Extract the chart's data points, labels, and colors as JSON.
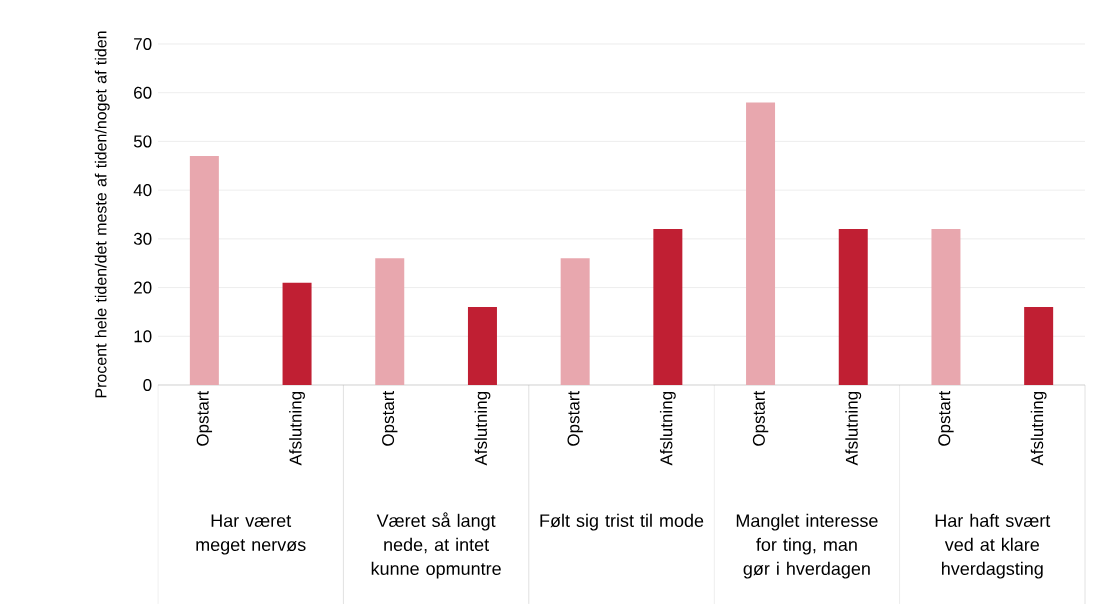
{
  "chart_data": {
    "type": "bar",
    "ylabel": "Procent hele tiden/det meste af tiden/noget af tiden",
    "categories": [
      "Opstart",
      "Afslutning",
      "Opstart",
      "Afslutning",
      "Opstart",
      "Afslutning",
      "Opstart",
      "Afslutning",
      "Opstart",
      "Afslutning"
    ],
    "values": [
      47,
      21,
      26,
      16,
      26,
      32,
      58,
      32,
      32,
      16
    ],
    "colors": [
      "#e8a7ae",
      "#c01f33",
      "#e8a7ae",
      "#c01f33",
      "#e8a7ae",
      "#c01f33",
      "#e8a7ae",
      "#c01f33",
      "#e8a7ae",
      "#c01f33"
    ],
    "annotations": [
      "Har været meget nervøs",
      "Været så langt nede, at intet kunne opmuntre",
      "Følt sig trist til mode",
      "Manglet interesse for ting, man gør i hverdagen",
      "Har haft svært ved at klare hverdagsting"
    ],
    "ylim": [
      0,
      70
    ],
    "yticks": [
      0,
      10,
      20,
      30,
      40,
      50,
      60,
      70
    ],
    "grid": "y"
  }
}
